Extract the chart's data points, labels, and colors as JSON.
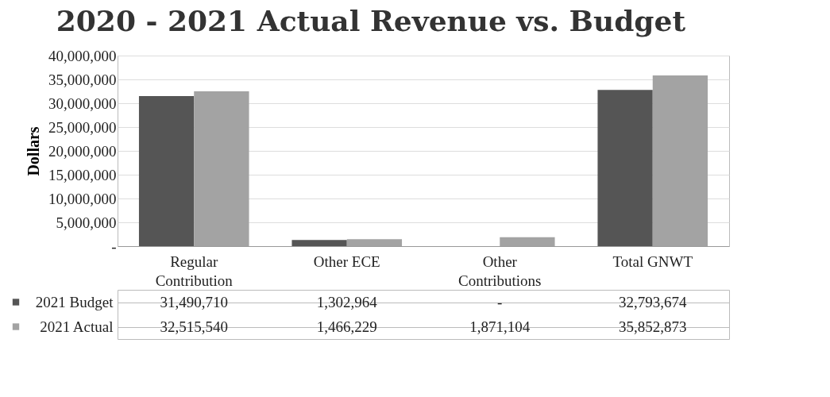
{
  "chart_data": {
    "type": "bar",
    "title": "2020 - 2021 Actual Revenue vs. Budget",
    "ylabel": "Dollars",
    "categories": [
      "Regular Contribution",
      "Other ECE",
      "Other Contributions",
      "Total GNWT"
    ],
    "series": [
      {
        "name": "2021 Budget",
        "color": "#555555",
        "values": [
          31490710,
          1302964,
          0,
          32793674
        ],
        "value_labels": [
          "31,490,710",
          "1,302,964",
          "-",
          "32,793,674"
        ]
      },
      {
        "name": "2021 Actual",
        "color": "#a3a3a3",
        "values": [
          32515540,
          1466229,
          1871104,
          35852873
        ],
        "value_labels": [
          "32,515,540",
          "1,466,229",
          "1,871,104",
          "35,852,873"
        ]
      }
    ],
    "ylim": [
      0,
      40000000
    ],
    "yticks": [
      {
        "value": 0,
        "label": "-"
      },
      {
        "value": 5000000,
        "label": "5,000,000"
      },
      {
        "value": 10000000,
        "label": "10,000,000"
      },
      {
        "value": 15000000,
        "label": "15,000,000"
      },
      {
        "value": 20000000,
        "label": "20,000,000"
      },
      {
        "value": 25000000,
        "label": "25,000,000"
      },
      {
        "value": 30000000,
        "label": "30,000,000"
      },
      {
        "value": 35000000,
        "label": "35,000,000"
      },
      {
        "value": 40000000,
        "label": "40,000,000"
      }
    ],
    "grid": "y",
    "legend": "bottom"
  }
}
